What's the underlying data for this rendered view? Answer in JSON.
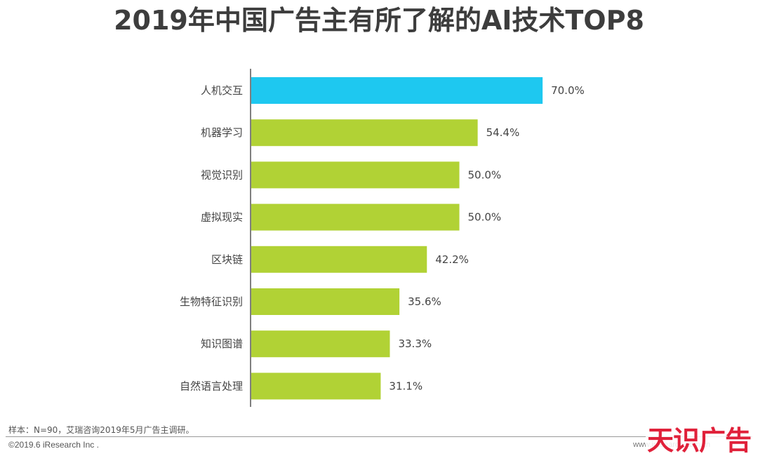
{
  "title": "2019年中国广告主有所了解的AI技术TOP8",
  "chart_data": {
    "type": "bar",
    "orientation": "horizontal",
    "title": "2019年中国广告主有所了解的AI技术TOP8",
    "xlabel": "",
    "ylabel": "",
    "categories": [
      "人机交互",
      "机器学习",
      "视觉识别",
      "虚拟现实",
      "区块链",
      "生物特征识别",
      "知识图谱",
      "自然语言处理"
    ],
    "values": [
      70.0,
      54.4,
      50.0,
      50.0,
      42.2,
      35.6,
      33.3,
      31.1
    ],
    "value_labels": [
      "70.0%",
      "54.4%",
      "50.0%",
      "50.0%",
      "42.2%",
      "35.6%",
      "33.3%",
      "31.1%"
    ],
    "xlim": [
      0,
      100
    ],
    "grid": false,
    "legend": "none",
    "colors": {
      "highlight": "#1ec8f0",
      "default": "#b1d235",
      "axis": "#555555"
    },
    "highlight_index": 0
  },
  "footer": {
    "note": "样本：N=90，艾瑞咨询2019年5月广告主调研。",
    "copyright": "©2019.6 iResearch Inc .",
    "website": "www.iresearch.com.cn"
  },
  "watermark": "天识广告"
}
